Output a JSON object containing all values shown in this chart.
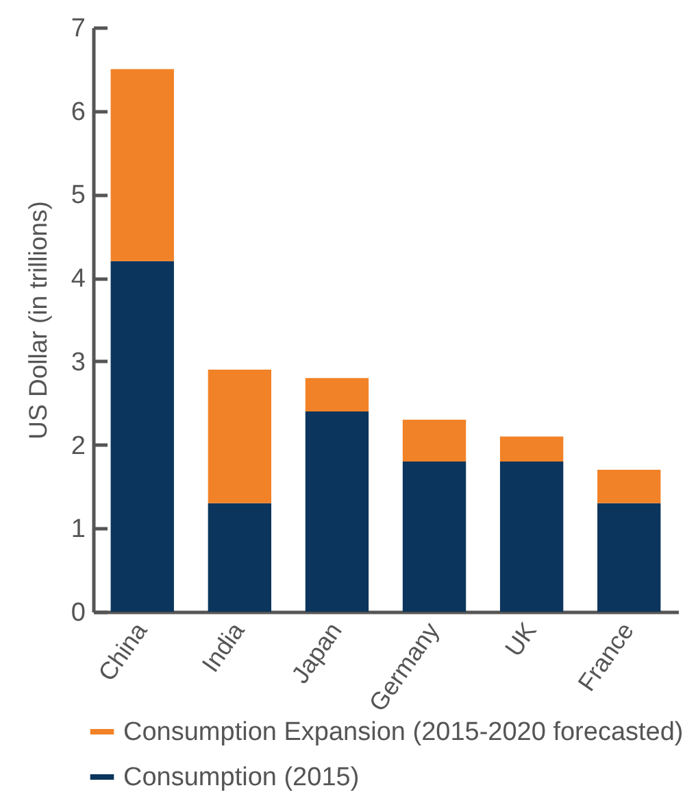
{
  "chart_data": {
    "type": "bar",
    "ylabel": "US Dollar (in trillions)",
    "categories": [
      "China",
      "India",
      "Japan",
      "Germany",
      "UK",
      "France"
    ],
    "stacked": true,
    "series": [
      {
        "name": "Consumption (2015)",
        "color": "#0b355c",
        "values": [
          4.2,
          1.3,
          2.4,
          1.8,
          1.8,
          1.3
        ]
      },
      {
        "name": "Consumption Expansion (2015-2020 forecasted)",
        "color": "#f28227",
        "values": [
          2.3,
          1.6,
          0.4,
          0.5,
          0.3,
          0.4
        ]
      }
    ],
    "ylim": [
      0,
      7
    ],
    "yticks": [
      0,
      1,
      2,
      3,
      4,
      5,
      6,
      7
    ],
    "legend": "bottom"
  }
}
